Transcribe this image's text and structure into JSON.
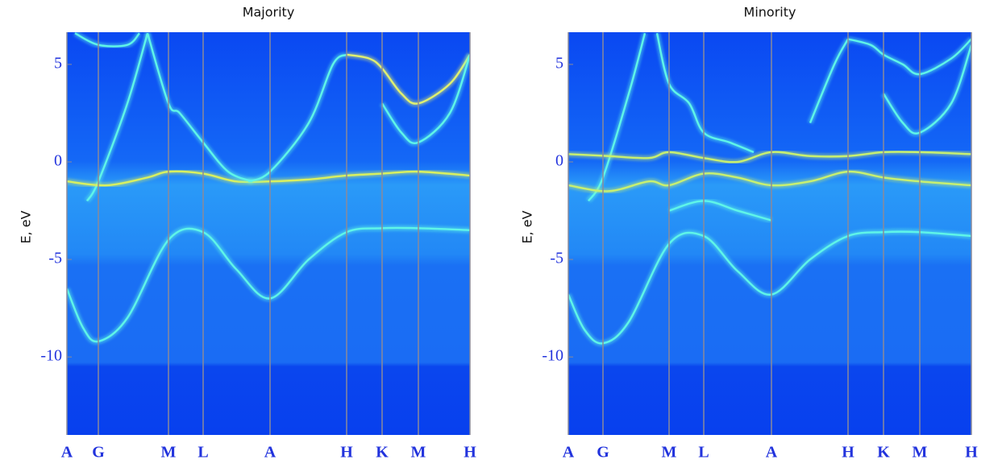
{
  "chart_data": [
    {
      "type": "band",
      "title": "Majority",
      "y_label": "E, eV",
      "xlim": [
        0,
        1
      ],
      "ylim": [
        -14,
        6.65
      ],
      "xticks": [
        {
          "value": 0,
          "label": "A"
        },
        {
          "value": 0.078,
          "label": "G"
        },
        {
          "value": 0.252,
          "label": "M"
        },
        {
          "value": 0.338,
          "label": "L"
        },
        {
          "value": 0.504,
          "label": "A"
        },
        {
          "value": 0.694,
          "label": "H"
        },
        {
          "value": 0.782,
          "label": "K"
        },
        {
          "value": 0.872,
          "label": "M"
        },
        {
          "value": 1,
          "label": "H"
        }
      ],
      "yticks": [
        5,
        0,
        -5,
        -10
      ],
      "series": [
        {
          "color": "#5ff5e8",
          "x": [
            0,
            0.04,
            0.078,
            0.15,
            0.252,
            0.338,
            0.42,
            0.504,
            0.6,
            0.694,
            0.782,
            0.872,
            1
          ],
          "values": [
            -6.5,
            -8.5,
            -9.2,
            -8,
            -4,
            -3.6,
            -5.5,
            -7,
            -5,
            -3.6,
            -3.4,
            -3.4,
            -3.5
          ]
        },
        {
          "color": "#5ff5e8",
          "x": [
            0.05,
            0.078,
            0.15,
            0.2
          ],
          "values": [
            -2,
            -1,
            3,
            6.6
          ]
        },
        {
          "color": "#d8f060",
          "x": [
            0,
            0.1,
            0.2,
            0.252,
            0.338,
            0.42,
            0.504,
            0.6,
            0.694,
            0.782,
            0.872,
            1
          ],
          "values": [
            -1,
            -1.2,
            -0.8,
            -0.5,
            -0.6,
            -1,
            -1,
            -0.9,
            -0.7,
            -0.6,
            -0.5,
            -0.7
          ]
        },
        {
          "color": "#5ff5e8",
          "x": [
            0.2,
            0.252,
            0.28,
            0.338,
            0.4,
            0.46
          ],
          "values": [
            6.6,
            3,
            2.5,
            1,
            -0.5,
            -1
          ]
        },
        {
          "color": "#5ff5e8",
          "x": [
            0.45,
            0.504,
            0.6,
            0.66,
            0.694
          ],
          "values": [
            -1,
            -0.5,
            2,
            5,
            5.5
          ]
        },
        {
          "color": "#e0f070",
          "x": [
            0.694,
            0.75,
            0.782,
            0.83,
            0.872,
            0.95,
            1
          ],
          "values": [
            5.5,
            5.3,
            4.8,
            3.5,
            3,
            4,
            5.5
          ]
        },
        {
          "color": "#5ff5e8",
          "x": [
            0.782,
            0.83,
            0.872,
            0.95,
            1
          ],
          "values": [
            3,
            1.5,
            1,
            2.5,
            5.5
          ]
        },
        {
          "color": "#5ff5e8",
          "x": [
            0.02,
            0.078,
            0.15,
            0.18
          ],
          "values": [
            6.6,
            6,
            6,
            6.6
          ]
        }
      ]
    },
    {
      "type": "band",
      "title": "Minority",
      "y_label": "E, eV",
      "xlim": [
        0,
        1
      ],
      "ylim": [
        -14,
        6.65
      ],
      "xticks": [
        {
          "value": 0,
          "label": "A"
        },
        {
          "value": 0.086,
          "label": "G"
        },
        {
          "value": 0.25,
          "label": "M"
        },
        {
          "value": 0.336,
          "label": "L"
        },
        {
          "value": 0.504,
          "label": "A"
        },
        {
          "value": 0.694,
          "label": "H"
        },
        {
          "value": 0.782,
          "label": "K"
        },
        {
          "value": 0.872,
          "label": "M"
        },
        {
          "value": 1,
          "label": "H"
        }
      ],
      "yticks": [
        5,
        0,
        -5,
        -10
      ],
      "series": [
        {
          "color": "#5ff5e8",
          "x": [
            0,
            0.04,
            0.086,
            0.15,
            0.25,
            0.336,
            0.42,
            0.504,
            0.6,
            0.694,
            0.782,
            0.872,
            1
          ],
          "values": [
            -6.8,
            -8.6,
            -9.3,
            -8.2,
            -4.2,
            -3.8,
            -5.6,
            -6.8,
            -5,
            -3.8,
            -3.6,
            -3.6,
            -3.8
          ]
        },
        {
          "color": "#5ff5e8",
          "x": [
            0.05,
            0.086,
            0.15,
            0.19
          ],
          "values": [
            -2,
            -0.8,
            3.5,
            6.6
          ]
        },
        {
          "color": "#c8f070",
          "x": [
            0,
            0.1,
            0.2,
            0.25,
            0.336,
            0.42,
            0.504,
            0.6,
            0.694,
            0.782,
            0.872,
            1
          ],
          "values": [
            0.4,
            0.3,
            0.2,
            0.5,
            0.2,
            0,
            0.5,
            0.3,
            0.3,
            0.5,
            0.5,
            0.4
          ]
        },
        {
          "color": "#c8f070",
          "x": [
            0,
            0.1,
            0.2,
            0.25,
            0.336,
            0.42,
            0.504,
            0.6,
            0.694,
            0.782,
            0.872,
            1
          ],
          "values": [
            -1.2,
            -1.5,
            -1,
            -1.2,
            -0.6,
            -0.8,
            -1.2,
            -1,
            -0.5,
            -0.8,
            -1,
            -1.2
          ]
        },
        {
          "color": "#5ff5e8",
          "x": [
            0.22,
            0.25,
            0.3,
            0.336,
            0.4,
            0.46
          ],
          "values": [
            6.6,
            4,
            3,
            1.5,
            1,
            0.5
          ]
        },
        {
          "color": "#5ff5e8",
          "x": [
            0.6,
            0.66,
            0.694
          ],
          "values": [
            2,
            5,
            6.3
          ]
        },
        {
          "color": "#5ff5e8",
          "x": [
            0.694,
            0.75,
            0.782,
            0.83,
            0.872,
            0.95,
            1
          ],
          "values": [
            6.3,
            6,
            5.5,
            5,
            4.5,
            5.3,
            6.3
          ]
        },
        {
          "color": "#5ff5e8",
          "x": [
            0.782,
            0.83,
            0.872,
            0.95,
            1
          ],
          "values": [
            3.5,
            2,
            1.5,
            3,
            6
          ]
        },
        {
          "color": "#5ff5e8",
          "x": [
            0.25,
            0.336,
            0.42,
            0.504
          ],
          "values": [
            -2.5,
            -2,
            -2.5,
            -3
          ]
        }
      ]
    }
  ]
}
